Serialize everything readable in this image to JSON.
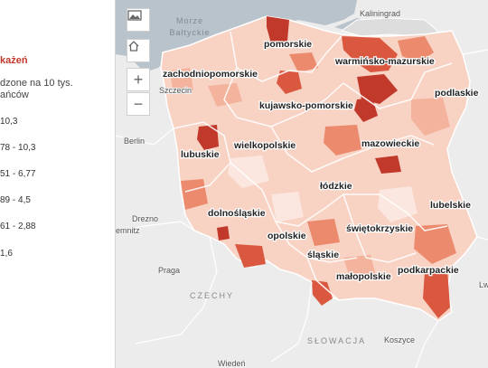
{
  "legend": {
    "title": "każeń",
    "subtitle_line1": "dzone na 10 tys.",
    "subtitle_line2": "ańców",
    "items": [
      {
        "label": "10,3",
        "color": "#c0392b"
      },
      {
        "label": "78 - 10,3",
        "color": "#d9583f"
      },
      {
        "label": "51 - 6,77",
        "color": "#ec8a6e"
      },
      {
        "label": "89 - 4,5",
        "color": "#f4b39c"
      },
      {
        "label": "61 - 2,88",
        "color": "#f8d2c3"
      },
      {
        "label": "1,6",
        "color": "#fbe7df"
      }
    ]
  },
  "controls": {
    "basemap_icon": "basemap-gallery-icon",
    "home_icon": "home-icon",
    "zoom_in": "+",
    "zoom_out": "−"
  },
  "map": {
    "regions": [
      {
        "name": "pomorskie"
      },
      {
        "name": "warmińsko-mazurskie"
      },
      {
        "name": "podlaskie"
      },
      {
        "name": "zachodniopomorskie"
      },
      {
        "name": "kujawsko-pomorskie"
      },
      {
        "name": "mazowieckie"
      },
      {
        "name": "wielkopolskie"
      },
      {
        "name": "lubuskie"
      },
      {
        "name": "łódzkie"
      },
      {
        "name": "lubelskie"
      },
      {
        "name": "dolnośląskie"
      },
      {
        "name": "świętokrzyskie"
      },
      {
        "name": "opolskie"
      },
      {
        "name": "śląskie"
      },
      {
        "name": "małopolskie"
      },
      {
        "name": "podkarpackie"
      }
    ],
    "places": [
      {
        "name": "Kaliningrad"
      },
      {
        "name": "Szczecin"
      },
      {
        "name": "Berlin"
      },
      {
        "name": "Drezno"
      },
      {
        "name": "emnitz"
      },
      {
        "name": "Praga"
      },
      {
        "name": "Koszyce"
      },
      {
        "name": "Wiedeń"
      },
      {
        "name": "Lw"
      }
    ],
    "countries": [
      {
        "name": "CZECHY"
      },
      {
        "name": "SŁOWACJA"
      }
    ],
    "sea": {
      "line1": "Morze",
      "line2": "Bałtyckie"
    },
    "colors": {
      "land": "#ececec",
      "water": "#b9c3cc",
      "very_light": "#fbe7df",
      "light": "#f8d2c3",
      "medium_light": "#f4b39c",
      "medium": "#ec8a6e",
      "strong": "#d9583f",
      "darkest": "#c0392b"
    }
  }
}
